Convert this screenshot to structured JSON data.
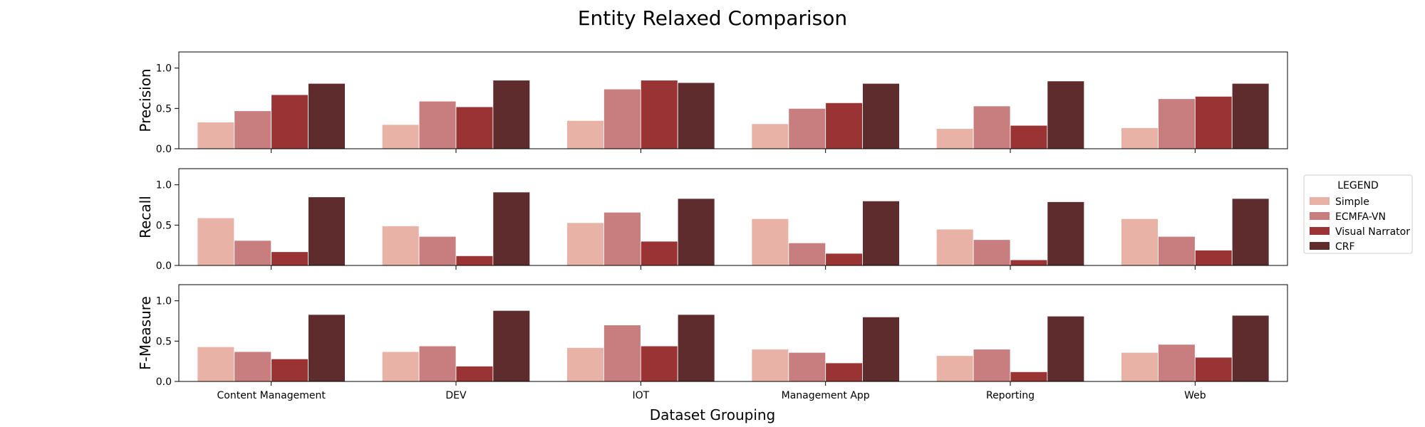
{
  "chart_data": {
    "type": "bar",
    "title": "Entity Relaxed Comparison",
    "xlabel": "Dataset Grouping",
    "categories": [
      "Content Management",
      "DEV",
      "IOT",
      "Management App",
      "Reporting",
      "Web"
    ],
    "ylim": [
      0,
      1.2
    ],
    "yticks": [
      "0.0",
      "0.5",
      "1.0"
    ],
    "legend": {
      "title": "LEGEND",
      "placement": "right",
      "entries": [
        "Simple",
        "ECMFA-VN",
        "Visual Narrator",
        "CRF"
      ]
    },
    "series_colors": [
      "#e8b2a6",
      "#c87e7e",
      "#9a3434",
      "#5e2c2c"
    ],
    "panels": [
      {
        "ylabel": "Precision",
        "series": [
          {
            "name": "Simple",
            "values": [
              0.33,
              0.3,
              0.35,
              0.31,
              0.25,
              0.26
            ]
          },
          {
            "name": "ECMFA-VN",
            "values": [
              0.47,
              0.59,
              0.74,
              0.5,
              0.53,
              0.62
            ]
          },
          {
            "name": "Visual Narrator",
            "values": [
              0.67,
              0.52,
              0.85,
              0.57,
              0.29,
              0.65
            ]
          },
          {
            "name": "CRF",
            "values": [
              0.81,
              0.85,
              0.82,
              0.81,
              0.84,
              0.81
            ]
          }
        ]
      },
      {
        "ylabel": "Recall",
        "series": [
          {
            "name": "Simple",
            "values": [
              0.59,
              0.49,
              0.53,
              0.58,
              0.45,
              0.58
            ]
          },
          {
            "name": "ECMFA-VN",
            "values": [
              0.31,
              0.36,
              0.66,
              0.28,
              0.32,
              0.36
            ]
          },
          {
            "name": "Visual Narrator",
            "values": [
              0.17,
              0.12,
              0.3,
              0.15,
              0.07,
              0.19
            ]
          },
          {
            "name": "CRF",
            "values": [
              0.85,
              0.91,
              0.83,
              0.8,
              0.79,
              0.83
            ]
          }
        ]
      },
      {
        "ylabel": "F-Measure",
        "series": [
          {
            "name": "Simple",
            "values": [
              0.43,
              0.37,
              0.42,
              0.4,
              0.32,
              0.36
            ]
          },
          {
            "name": "ECMFA-VN",
            "values": [
              0.37,
              0.44,
              0.7,
              0.36,
              0.4,
              0.46
            ]
          },
          {
            "name": "Visual Narrator",
            "values": [
              0.28,
              0.19,
              0.44,
              0.23,
              0.12,
              0.3
            ]
          },
          {
            "name": "CRF",
            "values": [
              0.83,
              0.88,
              0.83,
              0.8,
              0.81,
              0.82
            ]
          }
        ]
      }
    ]
  }
}
